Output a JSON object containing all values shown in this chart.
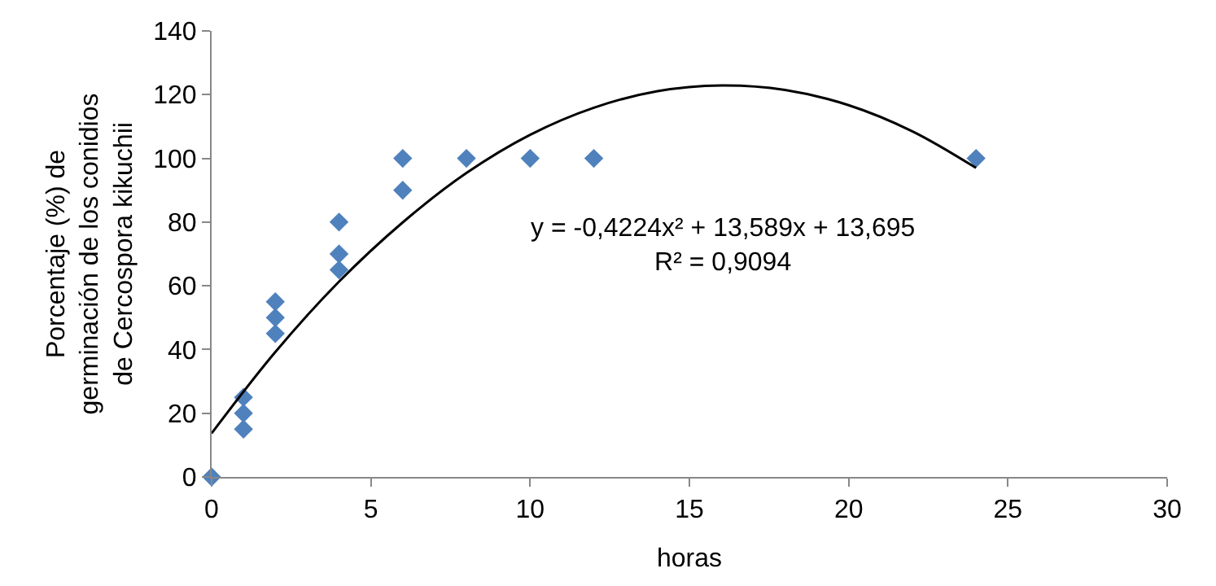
{
  "chart_data": {
    "type": "scatter",
    "xlabel": "horas",
    "ylabel": "Porcentaje (%) de\ngerminación de los conidios\nde Cercospora kikuchii",
    "series": [
      {
        "color": "#4f81bd",
        "marker": "diamond",
        "x": [
          0,
          1,
          1,
          1,
          2,
          2,
          2,
          4,
          4,
          4,
          6,
          6,
          8,
          10,
          12,
          24
        ],
        "values": [
          0,
          15,
          20,
          25,
          45,
          50,
          55,
          65,
          70,
          80,
          90,
          100,
          100,
          100,
          100,
          100
        ]
      },
      {
        "type": "line",
        "color": "#000000",
        "marker": "none",
        "line_style": "solid",
        "x": [
          0,
          2,
          4,
          6,
          8,
          10,
          12,
          14,
          16,
          18,
          20,
          22,
          24
        ],
        "values": [
          13.7,
          39.2,
          61.3,
          79.9,
          95.4,
          107.4,
          115.9,
          121.1,
          122.9,
          121.5,
          116.7,
          108.5,
          97.0
        ]
      }
    ],
    "annotations": [
      "y = -0,4224x² + 13,589x + 13,695\nR² = 0,9094"
    ],
    "xlim": [
      0,
      30
    ],
    "xticks": [
      0,
      5,
      10,
      15,
      20,
      25,
      30
    ],
    "ylim": [
      0,
      140
    ],
    "yticks": [
      0,
      20,
      40,
      60,
      80,
      100,
      120,
      140
    ]
  }
}
